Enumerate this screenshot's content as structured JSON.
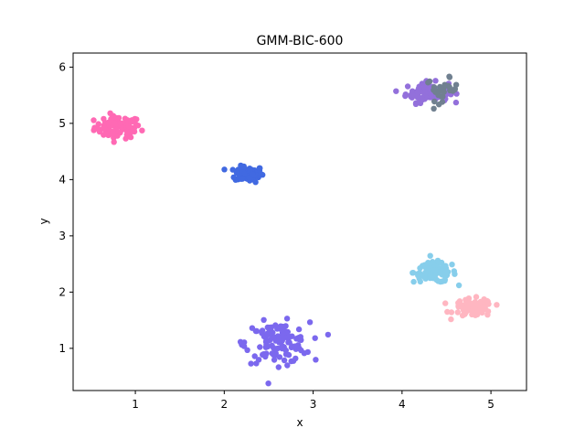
{
  "chart_data": {
    "type": "scatter",
    "title": "GMM-BIC-600",
    "xlabel": "x",
    "ylabel": "y",
    "xlim": [
      0.3,
      5.4
    ],
    "ylim": [
      0.25,
      6.25
    ],
    "xticks": [
      1,
      2,
      3,
      4,
      5
    ],
    "yticks": [
      1,
      2,
      3,
      4,
      5,
      6
    ],
    "grid": false,
    "legend": "none",
    "clusters": [
      {
        "color": "#ff69b4",
        "center": [
          0.8,
          4.93
        ],
        "spread": [
          0.13,
          0.1
        ],
        "n": 90
      },
      {
        "color": "#4169e1",
        "center": [
          2.28,
          4.1
        ],
        "spread": [
          0.08,
          0.07
        ],
        "n": 90
      },
      {
        "color": "#9370db",
        "center": [
          4.28,
          5.55
        ],
        "spread": [
          0.12,
          0.09
        ],
        "n": 80
      },
      {
        "color": "#708090",
        "center": [
          4.45,
          5.6
        ],
        "spread": [
          0.09,
          0.1
        ],
        "n": 30
      },
      {
        "color": "#87ceeb",
        "center": [
          4.37,
          2.35
        ],
        "spread": [
          0.12,
          0.09
        ],
        "n": 100
      },
      {
        "color": "#ffb6c1",
        "center": [
          4.8,
          1.72
        ],
        "spread": [
          0.11,
          0.08
        ],
        "n": 90
      },
      {
        "color": "#7b68ee",
        "center": [
          2.6,
          1.1
        ],
        "spread": [
          0.18,
          0.18
        ],
        "n": 120
      }
    ]
  }
}
